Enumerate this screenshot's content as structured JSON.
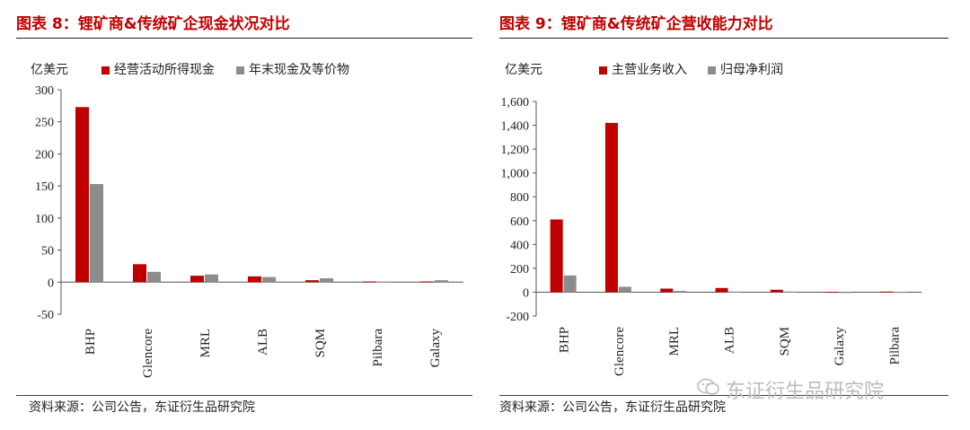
{
  "left": {
    "title": "图表 8：锂矿商&传统矿企现金状况对比",
    "source": "资料来源：公司公告，东证衍生品研究院"
  },
  "right": {
    "title": "图表 9：锂矿商&传统矿企营收能力对比",
    "source": "资料来源：公司公告，东证衍生品研究院"
  },
  "watermark": {
    "text": "东证衍生品研究院",
    "icon": "wechat-icon"
  },
  "colors": {
    "red": "#c00000",
    "gray": "#8c8c8c",
    "title": "#c00000"
  },
  "chart_data": [
    {
      "type": "bar",
      "unit_label": "亿美元",
      "categories": [
        "BHP",
        "Glencore",
        "MRL",
        "ALB",
        "SQM",
        "Pilbara",
        "Galaxy"
      ],
      "series": [
        {
          "name": "经营活动所得现金",
          "color": "#c00000",
          "values": [
            273,
            28,
            10,
            9,
            3,
            1,
            1
          ]
        },
        {
          "name": "年末现金及等价物",
          "color": "#8c8c8c",
          "values": [
            153,
            16,
            12,
            8,
            6,
            1,
            3
          ]
        }
      ],
      "ylim": [
        -50,
        300
      ],
      "yticks": [
        -50,
        0,
        50,
        100,
        150,
        200,
        250,
        300
      ],
      "legend": "top",
      "grid": false
    },
    {
      "type": "bar",
      "unit_label": "亿美元",
      "categories": [
        "BHP",
        "Glencore",
        "MRL",
        "ALB",
        "SQM",
        "Galaxy",
        "Pilbara"
      ],
      "series": [
        {
          "name": "主营业务收入",
          "color": "#c00000",
          "values": [
            610,
            1420,
            30,
            35,
            20,
            3,
            5
          ]
        },
        {
          "name": "归母净利润",
          "color": "#8c8c8c",
          "values": [
            140,
            45,
            10,
            5,
            5,
            1,
            2
          ]
        }
      ],
      "ylim": [
        -200,
        1600
      ],
      "yticks": [
        -200,
        0,
        200,
        400,
        600,
        800,
        1000,
        1200,
        1400,
        1600
      ],
      "legend": "top",
      "grid": false
    }
  ]
}
